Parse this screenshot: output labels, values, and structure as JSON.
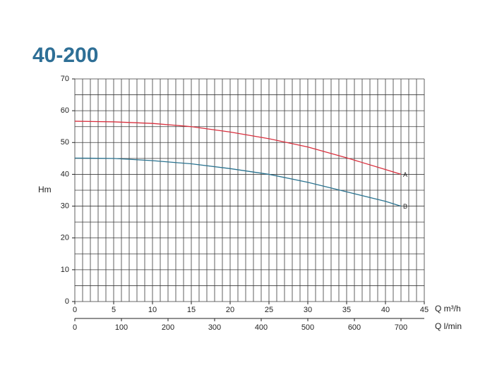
{
  "chart_data": {
    "type": "line",
    "title": "40-200",
    "y_label": "Hm",
    "x_label": "Q m³/h",
    "x2_label": "Q l/min",
    "xlim": [
      0,
      45
    ],
    "xticks": [
      0,
      5,
      10,
      15,
      20,
      25,
      30,
      35,
      40,
      45
    ],
    "xgrid": [
      0,
      1,
      2,
      3,
      4,
      5,
      6,
      7,
      8,
      9,
      10,
      11,
      12,
      13,
      14,
      15,
      16,
      17,
      18,
      19,
      20,
      21,
      22,
      23,
      24,
      25,
      26,
      27,
      28,
      29,
      30,
      31,
      32,
      33,
      34,
      35,
      36,
      37,
      38,
      39,
      40,
      41,
      42,
      43,
      44,
      45
    ],
    "ylim": [
      0,
      70
    ],
    "yticks": [
      0,
      10,
      20,
      30,
      40,
      50,
      60,
      70
    ],
    "ygrid": [
      0,
      5,
      10,
      15,
      20,
      25,
      30,
      35,
      40,
      45,
      50,
      55,
      60,
      65,
      70
    ],
    "x2lim": [
      0,
      750
    ],
    "x2ticks": [
      0,
      100,
      200,
      300,
      400,
      500,
      600,
      700
    ],
    "grid": true,
    "x": [
      0,
      5,
      10,
      15,
      20,
      25,
      30,
      35,
      40,
      42
    ],
    "series": [
      {
        "name": "A",
        "color": "#d9303e",
        "values": [
          56.7,
          56.5,
          56,
          55,
          53.3,
          51.2,
          48.6,
          45.2,
          41.5,
          40
        ]
      },
      {
        "name": "B",
        "color": "#2a7390",
        "values": [
          45.1,
          45,
          44.3,
          43.3,
          41.8,
          40,
          37.5,
          34.5,
          31.5,
          30
        ]
      }
    ]
  }
}
